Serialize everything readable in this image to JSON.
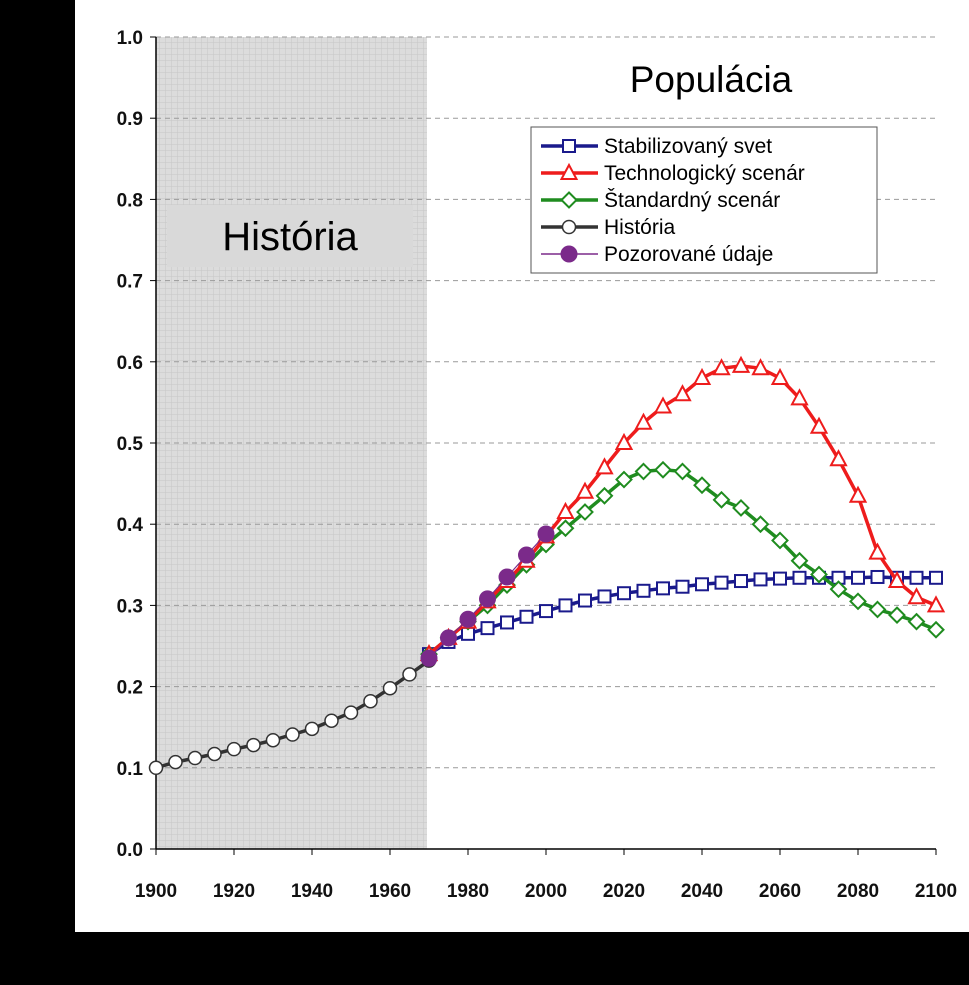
{
  "chart_data": {
    "type": "line",
    "title": "Populácia",
    "xlabel": "",
    "ylabel": "",
    "xlim": [
      1900,
      2100
    ],
    "ylim": [
      0.0,
      1.0
    ],
    "x_ticks": [
      "1900",
      "1920",
      "1940",
      "1960",
      "1980",
      "2000",
      "2020",
      "2040",
      "2060",
      "2080",
      "2100"
    ],
    "y_ticks": [
      "0.0",
      "0.1",
      "0.2",
      "0.3",
      "0.4",
      "0.5",
      "0.6",
      "0.7",
      "0.8",
      "0.9",
      "1.0"
    ],
    "grid": "horizontal dashed",
    "legend_position": "top-right",
    "shaded_region": {
      "label": "História",
      "x_range": [
        1900,
        1970
      ]
    },
    "series": [
      {
        "name": "Stabilizovaný svet",
        "color": "#1a1a8c",
        "marker": "square",
        "x": [
          1970,
          1975,
          1980,
          1985,
          1990,
          1995,
          2000,
          2005,
          2010,
          2015,
          2020,
          2025,
          2030,
          2035,
          2040,
          2045,
          2050,
          2055,
          2060,
          2065,
          2070,
          2075,
          2080,
          2085,
          2090,
          2095,
          2100
        ],
        "values": [
          0.24,
          0.255,
          0.265,
          0.272,
          0.279,
          0.286,
          0.293,
          0.3,
          0.306,
          0.311,
          0.315,
          0.318,
          0.321,
          0.323,
          0.326,
          0.328,
          0.33,
          0.332,
          0.333,
          0.334,
          0.334,
          0.334,
          0.334,
          0.335,
          0.334,
          0.334,
          0.334
        ]
      },
      {
        "name": "Technologický scenár",
        "color": "#ee1c1c",
        "marker": "triangle",
        "x": [
          1970,
          1975,
          1980,
          1985,
          1990,
          1995,
          2000,
          2005,
          2010,
          2015,
          2020,
          2025,
          2030,
          2035,
          2040,
          2045,
          2050,
          2055,
          2060,
          2065,
          2070,
          2075,
          2080,
          2085,
          2090,
          2095,
          2100
        ],
        "values": [
          0.24,
          0.26,
          0.28,
          0.305,
          0.33,
          0.355,
          0.385,
          0.415,
          0.44,
          0.47,
          0.5,
          0.525,
          0.545,
          0.56,
          0.58,
          0.592,
          0.595,
          0.592,
          0.58,
          0.555,
          0.52,
          0.48,
          0.435,
          0.365,
          0.33,
          0.31,
          0.3
        ]
      },
      {
        "name": "Štandardný scenár",
        "color": "#1f8c1f",
        "marker": "diamond",
        "x": [
          1970,
          1975,
          1980,
          1985,
          1990,
          1995,
          2000,
          2005,
          2010,
          2015,
          2020,
          2025,
          2030,
          2035,
          2040,
          2045,
          2050,
          2055,
          2060,
          2065,
          2070,
          2075,
          2080,
          2085,
          2090,
          2095,
          2100
        ],
        "values": [
          0.24,
          0.26,
          0.28,
          0.3,
          0.325,
          0.35,
          0.375,
          0.395,
          0.415,
          0.435,
          0.455,
          0.465,
          0.467,
          0.465,
          0.448,
          0.43,
          0.42,
          0.4,
          0.38,
          0.355,
          0.338,
          0.32,
          0.305,
          0.295,
          0.288,
          0.28,
          0.27
        ]
      },
      {
        "name": "História",
        "color": "#333333",
        "marker": "circle-open",
        "x": [
          1900,
          1905,
          1910,
          1915,
          1920,
          1925,
          1930,
          1935,
          1940,
          1945,
          1950,
          1955,
          1960,
          1965,
          1970
        ],
        "values": [
          0.1,
          0.107,
          0.112,
          0.117,
          0.123,
          0.128,
          0.134,
          0.141,
          0.148,
          0.158,
          0.168,
          0.182,
          0.198,
          0.215,
          0.232
        ]
      },
      {
        "name": "Pozorované údaje",
        "color": "#7b2a8a",
        "marker": "circle-filled",
        "x": [
          1970,
          1975,
          1980,
          1985,
          1990,
          1995,
          2000
        ],
        "values": [
          0.235,
          0.26,
          0.283,
          0.308,
          0.335,
          0.362,
          0.388
        ]
      }
    ]
  }
}
